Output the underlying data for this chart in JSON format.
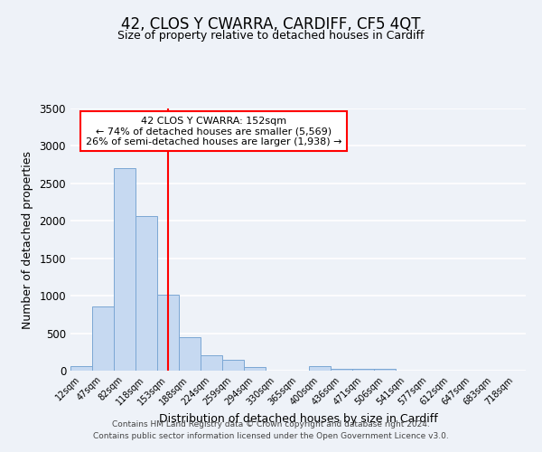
{
  "title": "42, CLOS Y CWARRA, CARDIFF, CF5 4QT",
  "subtitle": "Size of property relative to detached houses in Cardiff",
  "xlabel": "Distribution of detached houses by size in Cardiff",
  "ylabel": "Number of detached properties",
  "bar_labels": [
    "12sqm",
    "47sqm",
    "82sqm",
    "118sqm",
    "153sqm",
    "188sqm",
    "224sqm",
    "259sqm",
    "294sqm",
    "330sqm",
    "365sqm",
    "400sqm",
    "436sqm",
    "471sqm",
    "506sqm",
    "541sqm",
    "577sqm",
    "612sqm",
    "647sqm",
    "683sqm",
    "718sqm"
  ],
  "bar_values": [
    55,
    855,
    2700,
    2060,
    1010,
    450,
    205,
    145,
    50,
    0,
    0,
    55,
    30,
    30,
    20,
    0,
    0,
    0,
    0,
    0,
    0
  ],
  "bar_color": "#c6d9f1",
  "bar_edge_color": "#7ba7d4",
  "vline_x": 4,
  "vline_color": "red",
  "ylim": [
    0,
    3500
  ],
  "yticks": [
    0,
    500,
    1000,
    1500,
    2000,
    2500,
    3000,
    3500
  ],
  "annotation_title": "42 CLOS Y CWARRA: 152sqm",
  "annotation_line1": "← 74% of detached houses are smaller (5,569)",
  "annotation_line2": "26% of semi-detached houses are larger (1,938) →",
  "annotation_box_color": "white",
  "annotation_box_edge": "red",
  "footer_line1": "Contains HM Land Registry data © Crown copyright and database right 2024.",
  "footer_line2": "Contains public sector information licensed under the Open Government Licence v3.0.",
  "background_color": "#eef2f8",
  "grid_color": "white"
}
